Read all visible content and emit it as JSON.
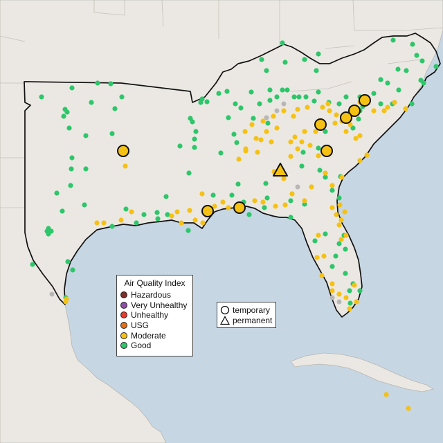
{
  "colors": {
    "ocean": "#c6d6e3",
    "land": "#ebe8e3",
    "region_border": "#111111",
    "Hazardous": "#7e2e2a",
    "Very Unhealthy": "#8f4fa5",
    "Unhealthy": "#e53b2c",
    "USG": "#e46f17",
    "Moderate": "#f5c114",
    "Good": "#2ec66b",
    "no_data": "#b7b7b7"
  },
  "aqi_legend": {
    "title": "Air Quality Index",
    "categories": [
      {
        "label": "Hazardous",
        "color_key": "Hazardous"
      },
      {
        "label": "Very Unhealthy",
        "color_key": "Very Unhealthy"
      },
      {
        "label": "Unhealthy",
        "color_key": "Unhealthy"
      },
      {
        "label": "USG",
        "color_key": "USG"
      },
      {
        "label": "Moderate",
        "color_key": "Moderate"
      },
      {
        "label": "Good",
        "color_key": "Good"
      }
    ]
  },
  "marker_legend": {
    "items": [
      {
        "label": "temporary",
        "shape": "circle-icon"
      },
      {
        "label": "permanent",
        "shape": "triangle-icon"
      }
    ]
  }
}
